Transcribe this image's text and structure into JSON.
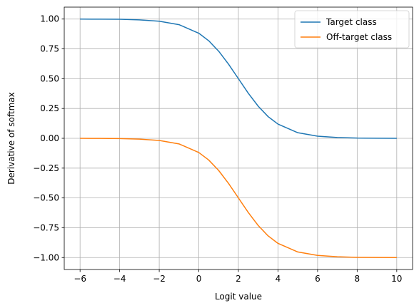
{
  "chart_data": {
    "type": "line",
    "title": "",
    "xlabel": "Logit value",
    "ylabel": "Derivative of softmax",
    "xlim": [
      -6.8,
      10.8
    ],
    "ylim": [
      -1.1,
      1.1
    ],
    "xticks": [
      -6,
      -4,
      -2,
      0,
      2,
      4,
      6,
      8,
      10
    ],
    "yticks": [
      1.0,
      0.75,
      0.5,
      0.25,
      0.0,
      -0.25,
      -0.5,
      -0.75,
      -1.0
    ],
    "xtick_labels": [
      "−6",
      "−4",
      "−2",
      "0",
      "2",
      "4",
      "6",
      "8",
      "10"
    ],
    "ytick_labels": [
      "1.00",
      "0.75",
      "0.50",
      "0.25",
      "0.00",
      "−0.25",
      "−0.50",
      "−0.75",
      "−1.00"
    ],
    "grid": true,
    "legend_position": "top-right",
    "x": [
      -6,
      -5,
      -4,
      -3,
      -2,
      -1,
      0,
      0.5,
      1,
      1.5,
      2,
      2.5,
      3,
      3.5,
      4,
      5,
      6,
      7,
      8,
      9,
      10
    ],
    "series": [
      {
        "name": "Target class",
        "color": "#1f77b4",
        "values": [
          1.0,
          0.999,
          0.998,
          0.993,
          0.982,
          0.953,
          0.881,
          0.818,
          0.731,
          0.622,
          0.5,
          0.378,
          0.269,
          0.182,
          0.119,
          0.047,
          0.018,
          0.007,
          0.002,
          0.001,
          0.0
        ]
      },
      {
        "name": "Off-target class",
        "color": "#ff7f0e",
        "values": [
          0.0,
          -0.001,
          -0.002,
          -0.007,
          -0.018,
          -0.047,
          -0.119,
          -0.182,
          -0.269,
          -0.378,
          -0.5,
          -0.622,
          -0.731,
          -0.818,
          -0.881,
          -0.953,
          -0.982,
          -0.993,
          -0.998,
          -0.999,
          -1.0
        ]
      }
    ]
  }
}
